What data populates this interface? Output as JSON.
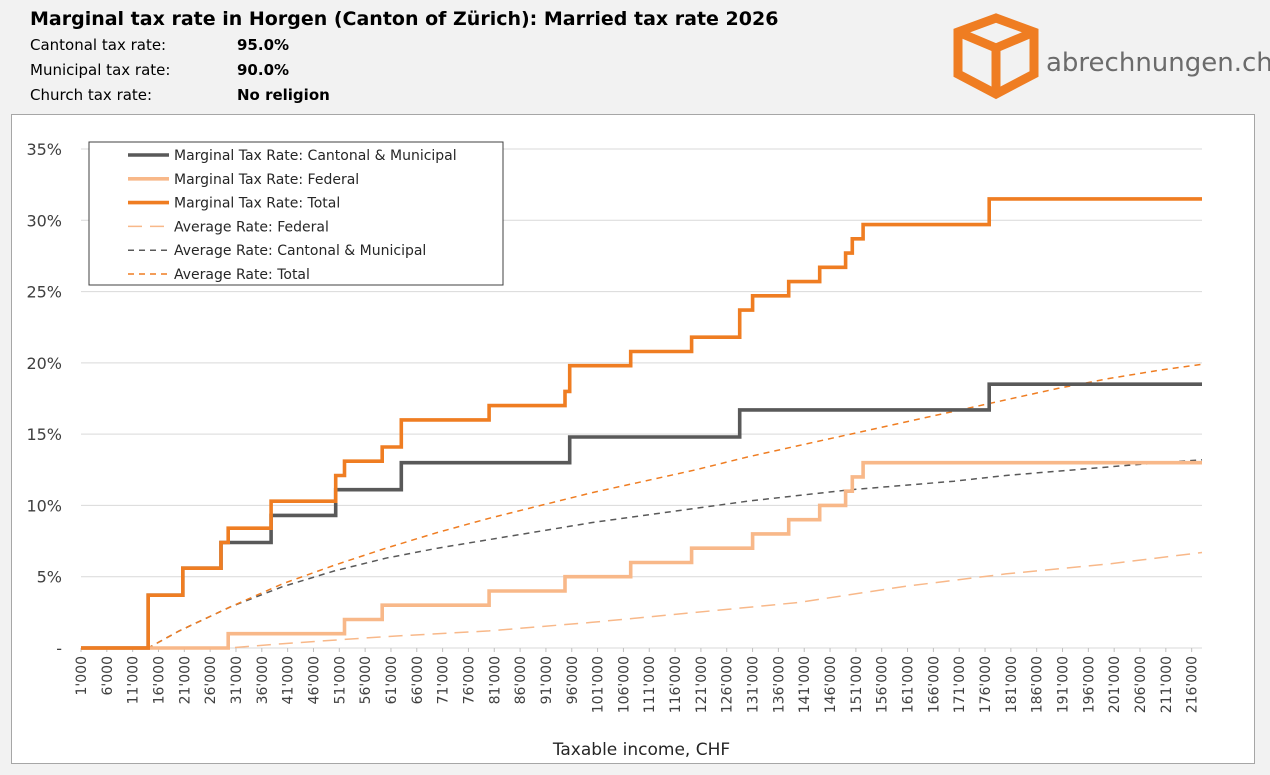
{
  "header": {
    "title": "Marginal tax rate in Horgen (Canton of Zürich): Married tax rate 2026",
    "rates": [
      {
        "label": "Cantonal tax rate:",
        "value": "95.0%"
      },
      {
        "label": "Municipal tax rate:",
        "value": "90.0%"
      },
      {
        "label": "Church tax rate:",
        "value": "No religion"
      }
    ]
  },
  "brand": {
    "name": "abrechnungen.ch",
    "color": "#ef7d22",
    "text_color": "#6b6b6b"
  },
  "chart_data": {
    "type": "line",
    "title": "",
    "xlabel": "Taxable income, CHF",
    "ylabel": "",
    "xlim": [
      1000,
      218000
    ],
    "ylim": [
      0,
      35
    ],
    "y_ticks": [
      0,
      5,
      10,
      15,
      20,
      25,
      30,
      35
    ],
    "y_tick_labels": [
      "-",
      "5%",
      "10%",
      "15%",
      "20%",
      "25%",
      "30%",
      "35%"
    ],
    "x_ticks": [
      1000,
      6000,
      11000,
      16000,
      21000,
      26000,
      31000,
      36000,
      41000,
      46000,
      51000,
      56000,
      61000,
      66000,
      71000,
      76000,
      81000,
      86000,
      91000,
      96000,
      101000,
      106000,
      111000,
      116000,
      121000,
      126000,
      131000,
      136000,
      141000,
      146000,
      151000,
      156000,
      161000,
      166000,
      171000,
      176000,
      181000,
      186000,
      191000,
      196000,
      201000,
      206000,
      211000,
      216000
    ],
    "x_tick_labels": [
      "1'000",
      "6'000",
      "11'000",
      "16'000",
      "21'000",
      "26'000",
      "31'000",
      "36'000",
      "41'000",
      "46'000",
      "51'000",
      "56'000",
      "61'000",
      "66'000",
      "71'000",
      "76'000",
      "81'000",
      "86'000",
      "91'000",
      "96'000",
      "101'000",
      "106'000",
      "111'000",
      "116'000",
      "121'000",
      "126'000",
      "131'000",
      "136'000",
      "141'000",
      "146'000",
      "151'000",
      "156'000",
      "161'000",
      "166'000",
      "171'000",
      "176'000",
      "181'000",
      "186'000",
      "191'000",
      "196'000",
      "201'000",
      "206'000",
      "211'000",
      "216'000"
    ],
    "grid": "horizontal",
    "legend_position": "top-left",
    "series": [
      {
        "name": "Marginal Tax Rate: Cantonal & Municipal",
        "style": "solid-thick",
        "color": "#595959",
        "step": true,
        "points": [
          [
            1000,
            0
          ],
          [
            14000,
            0
          ],
          [
            14000,
            3.7
          ],
          [
            20700,
            3.7
          ],
          [
            20700,
            5.6
          ],
          [
            28100,
            5.6
          ],
          [
            28100,
            7.4
          ],
          [
            37800,
            7.4
          ],
          [
            37800,
            9.3
          ],
          [
            50300,
            9.3
          ],
          [
            50300,
            11.1
          ],
          [
            63000,
            11.1
          ],
          [
            63000,
            13.0
          ],
          [
            95600,
            13.0
          ],
          [
            95600,
            14.8
          ],
          [
            128500,
            14.8
          ],
          [
            128500,
            16.7
          ],
          [
            176800,
            16.7
          ],
          [
            176800,
            18.5
          ],
          [
            218000,
            18.5
          ]
        ]
      },
      {
        "name": "Marginal Tax Rate: Federal",
        "style": "solid-thick",
        "color": "#f8b889",
        "step": true,
        "points": [
          [
            1000,
            0
          ],
          [
            29500,
            0
          ],
          [
            29500,
            1.0
          ],
          [
            52000,
            1.0
          ],
          [
            52000,
            2.0
          ],
          [
            59300,
            2.0
          ],
          [
            59300,
            3.0
          ],
          [
            80000,
            3.0
          ],
          [
            80000,
            4.0
          ],
          [
            94700,
            4.0
          ],
          [
            94700,
            5.0
          ],
          [
            107400,
            5.0
          ],
          [
            107400,
            6.0
          ],
          [
            119200,
            6.0
          ],
          [
            119200,
            7.0
          ],
          [
            131000,
            7.0
          ],
          [
            131000,
            8.0
          ],
          [
            138000,
            8.0
          ],
          [
            138000,
            9.0
          ],
          [
            144000,
            9.0
          ],
          [
            144000,
            10.0
          ],
          [
            149000,
            10.0
          ],
          [
            149000,
            11.0
          ],
          [
            150300,
            11.0
          ],
          [
            150300,
            12.0
          ],
          [
            152400,
            12.0
          ],
          [
            152400,
            13.0
          ],
          [
            218000,
            13.0
          ]
        ]
      },
      {
        "name": "Marginal Tax Rate: Total",
        "style": "solid-thick",
        "color": "#ef7d22",
        "step": true,
        "points": [
          [
            1000,
            0
          ],
          [
            14000,
            0
          ],
          [
            14000,
            3.7
          ],
          [
            20700,
            3.7
          ],
          [
            20700,
            5.6
          ],
          [
            28100,
            5.6
          ],
          [
            28100,
            7.4
          ],
          [
            29500,
            7.4
          ],
          [
            29500,
            8.4
          ],
          [
            37800,
            8.4
          ],
          [
            37800,
            10.3
          ],
          [
            50300,
            10.3
          ],
          [
            50300,
            12.1
          ],
          [
            52000,
            12.1
          ],
          [
            52000,
            13.1
          ],
          [
            59300,
            13.1
          ],
          [
            59300,
            14.1
          ],
          [
            63000,
            14.1
          ],
          [
            63000,
            16.0
          ],
          [
            80000,
            16.0
          ],
          [
            80000,
            17.0
          ],
          [
            94700,
            17.0
          ],
          [
            94700,
            18.0
          ],
          [
            95600,
            18.0
          ],
          [
            95600,
            19.8
          ],
          [
            107400,
            19.8
          ],
          [
            107400,
            20.8
          ],
          [
            119200,
            20.8
          ],
          [
            119200,
            21.8
          ],
          [
            128500,
            21.8
          ],
          [
            128500,
            23.7
          ],
          [
            131000,
            23.7
          ],
          [
            131000,
            24.7
          ],
          [
            138000,
            24.7
          ],
          [
            138000,
            25.7
          ],
          [
            144000,
            25.7
          ],
          [
            144000,
            26.7
          ],
          [
            149000,
            26.7
          ],
          [
            149000,
            27.7
          ],
          [
            150300,
            27.7
          ],
          [
            150300,
            28.7
          ],
          [
            152400,
            28.7
          ],
          [
            152400,
            29.7
          ],
          [
            176800,
            29.7
          ],
          [
            176800,
            31.5
          ],
          [
            218000,
            31.5
          ]
        ]
      },
      {
        "name": "Average Rate: Federal",
        "style": "long-dash",
        "color": "#f8b889",
        "step": false,
        "points": [
          [
            1000,
            0
          ],
          [
            29500,
            0
          ],
          [
            40000,
            0.3
          ],
          [
            60000,
            0.8
          ],
          [
            80000,
            1.2
          ],
          [
            100000,
            1.8
          ],
          [
            120000,
            2.5
          ],
          [
            140000,
            3.2
          ],
          [
            160000,
            4.3
          ],
          [
            180000,
            5.2
          ],
          [
            200000,
            5.9
          ],
          [
            218000,
            6.7
          ]
        ]
      },
      {
        "name": "Average Rate: Cantonal & Municipal",
        "style": "short-dash",
        "color": "#595959",
        "step": false,
        "points": [
          [
            1000,
            0
          ],
          [
            14000,
            0
          ],
          [
            20000,
            1.2
          ],
          [
            30000,
            2.9
          ],
          [
            40000,
            4.3
          ],
          [
            50000,
            5.4
          ],
          [
            60000,
            6.3
          ],
          [
            70000,
            7.0
          ],
          [
            80000,
            7.6
          ],
          [
            90000,
            8.2
          ],
          [
            100000,
            8.8
          ],
          [
            110000,
            9.3
          ],
          [
            120000,
            9.8
          ],
          [
            130000,
            10.3
          ],
          [
            140000,
            10.7
          ],
          [
            150000,
            11.1
          ],
          [
            160000,
            11.4
          ],
          [
            170000,
            11.7
          ],
          [
            180000,
            12.1
          ],
          [
            190000,
            12.4
          ],
          [
            200000,
            12.7
          ],
          [
            210000,
            13.0
          ],
          [
            218000,
            13.2
          ]
        ]
      },
      {
        "name": "Average Rate: Total",
        "style": "short-dash",
        "color": "#ef7d22",
        "step": false,
        "points": [
          [
            1000,
            0
          ],
          [
            14000,
            0
          ],
          [
            20000,
            1.2
          ],
          [
            30000,
            2.9
          ],
          [
            40000,
            4.5
          ],
          [
            50000,
            5.8
          ],
          [
            60000,
            7.0
          ],
          [
            70000,
            8.1
          ],
          [
            80000,
            9.1
          ],
          [
            90000,
            10.0
          ],
          [
            100000,
            10.9
          ],
          [
            110000,
            11.7
          ],
          [
            120000,
            12.5
          ],
          [
            130000,
            13.4
          ],
          [
            140000,
            14.2
          ],
          [
            150000,
            15.0
          ],
          [
            160000,
            15.8
          ],
          [
            170000,
            16.6
          ],
          [
            180000,
            17.4
          ],
          [
            190000,
            18.2
          ],
          [
            200000,
            18.9
          ],
          [
            210000,
            19.5
          ],
          [
            218000,
            19.9
          ]
        ]
      }
    ]
  }
}
